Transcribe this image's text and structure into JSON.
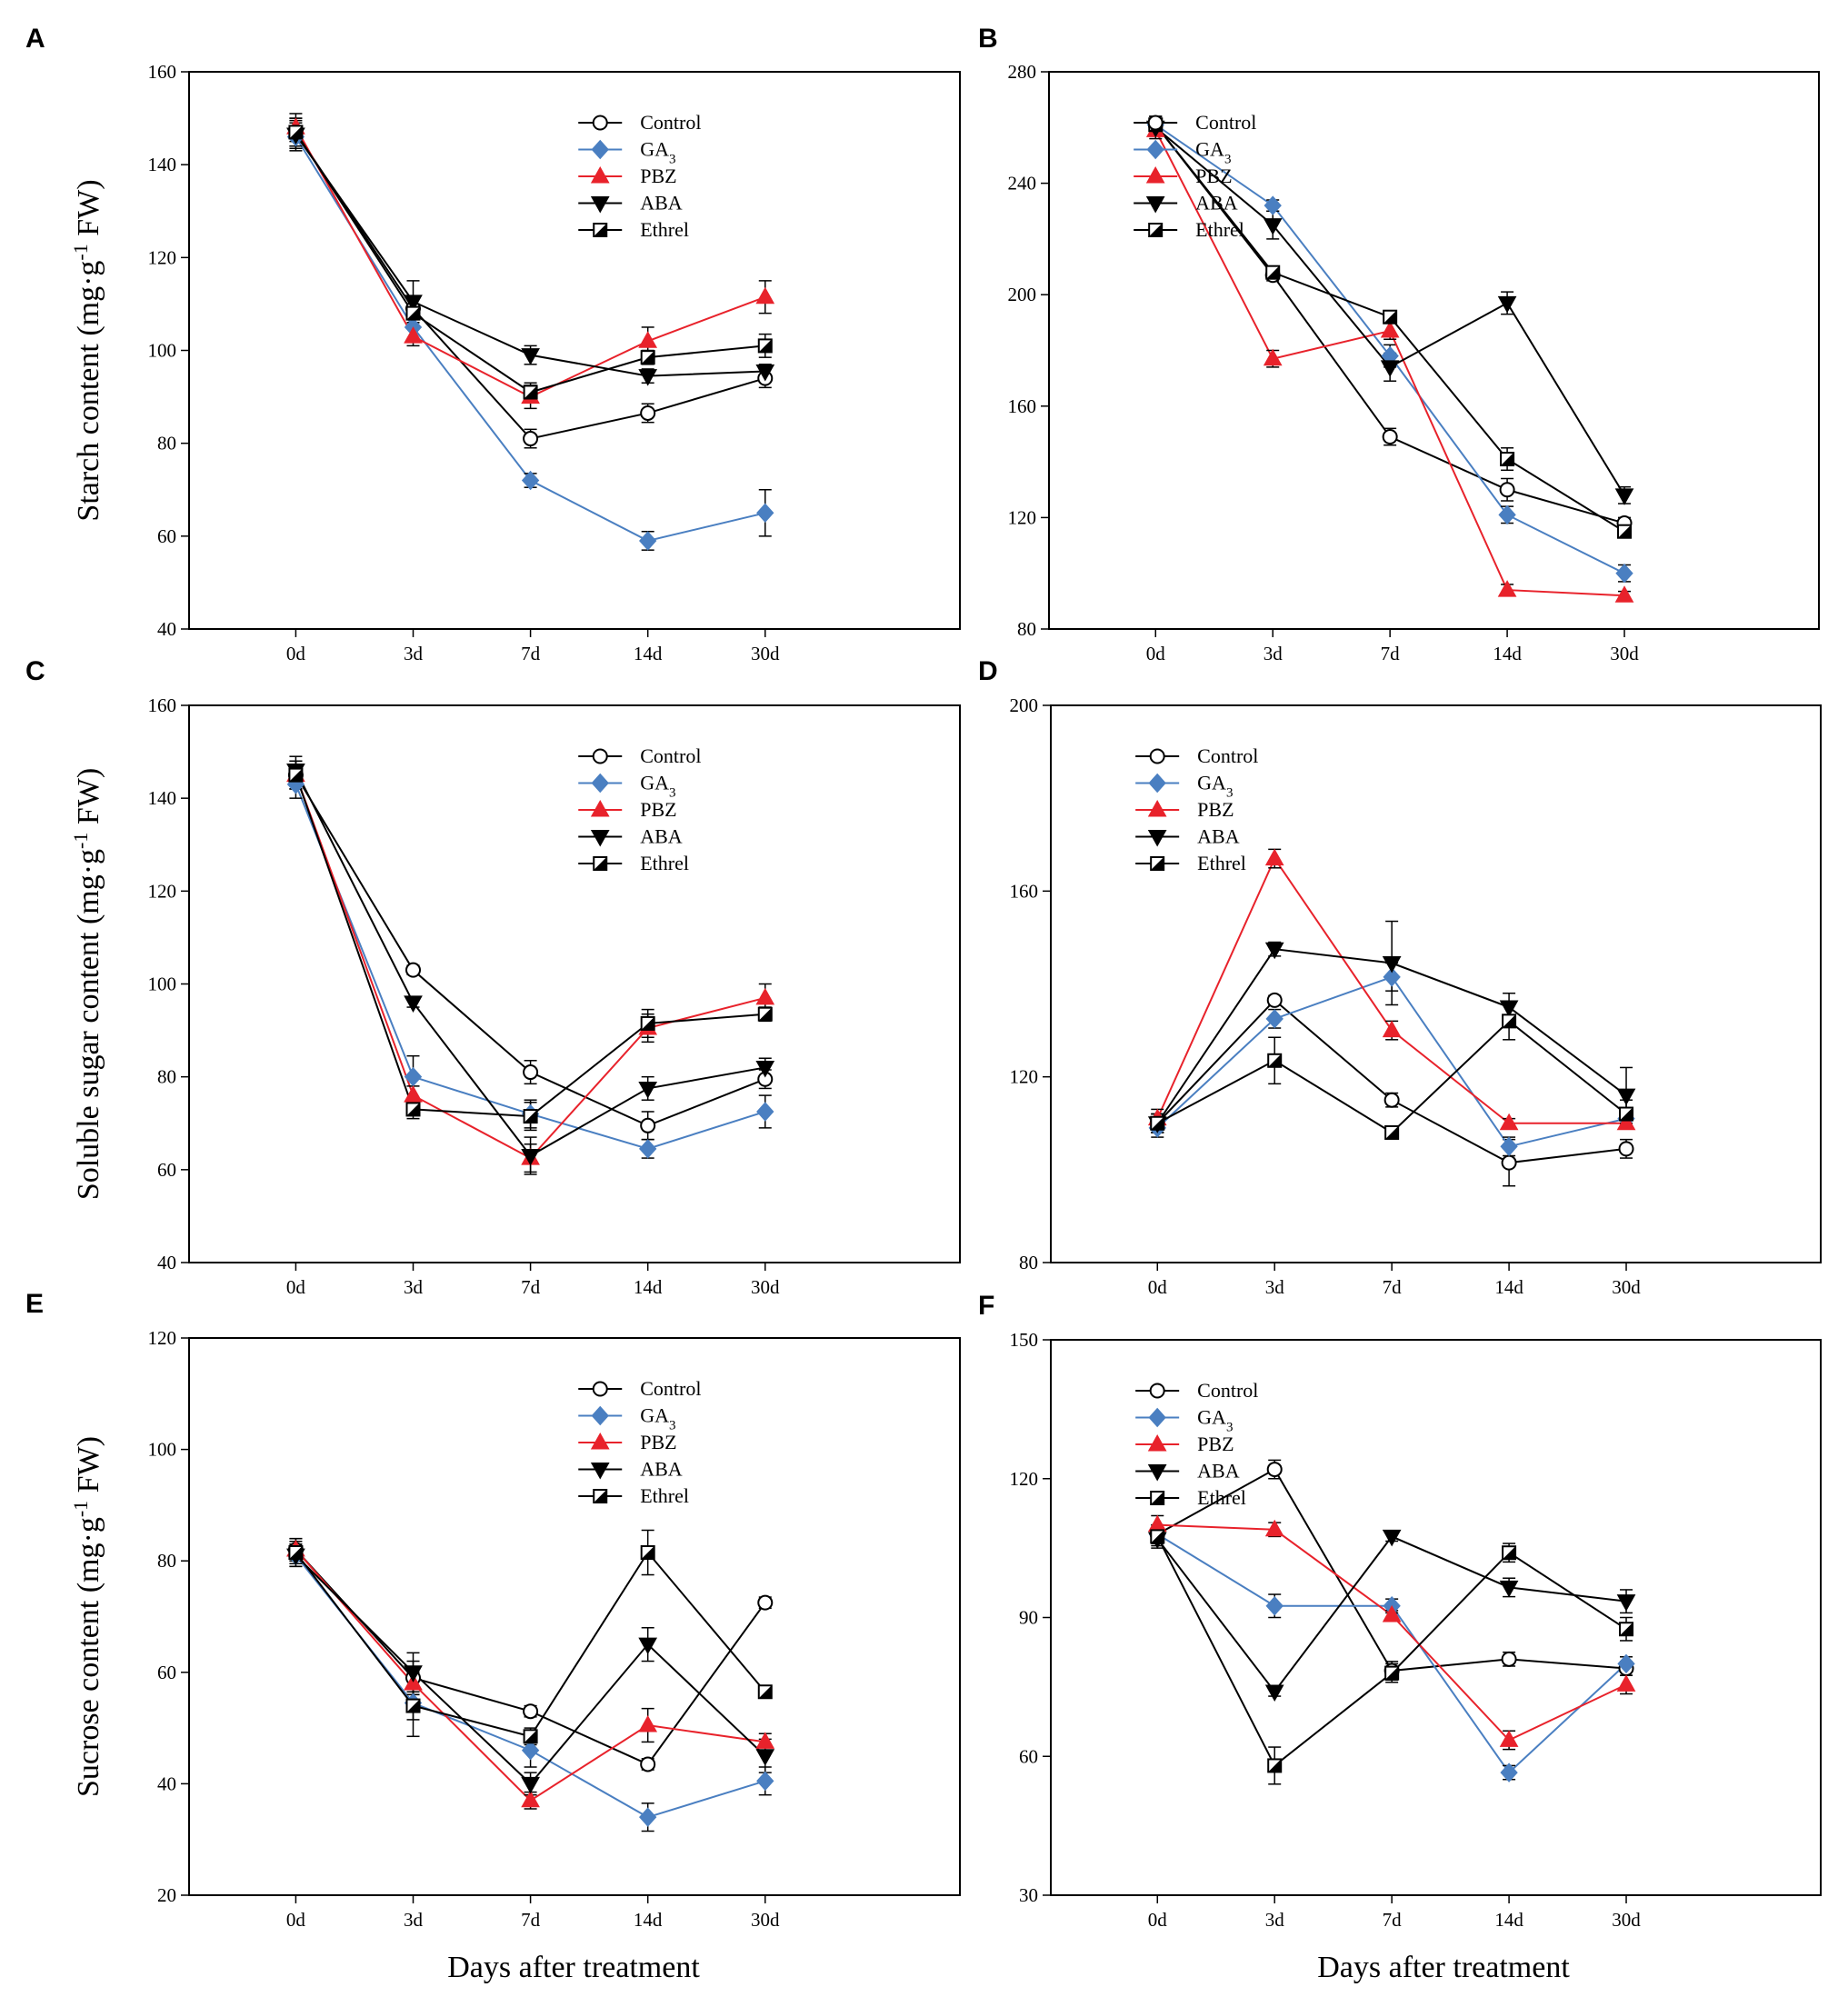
{
  "figure": {
    "xlabel": "Days after treatment"
  },
  "legend": [
    {
      "name": "Control",
      "display": "Control",
      "color": "#000000",
      "marker": "circle-open"
    },
    {
      "name": "GA3",
      "display": "GA",
      "sub": "3",
      "color": "#4a7fc1",
      "marker": "diamond"
    },
    {
      "name": "PBZ",
      "display": "PBZ",
      "color": "#e8222b",
      "marker": "triangle-up"
    },
    {
      "name": "ABA",
      "display": "ABA",
      "color": "#000000",
      "marker": "triangle-down"
    },
    {
      "name": "Ethrel",
      "display": "Ethrel",
      "color": "#000000",
      "marker": "square-half"
    }
  ],
  "chart_data": [
    {
      "panel": "A",
      "type": "line",
      "categories": [
        "0d",
        "3d",
        "7d",
        "14d",
        "30d"
      ],
      "ylabel": "Starch content (mg·g⁻¹ FW)",
      "ylabel_pre": "Starch content (mg·g",
      "ylabel_sup": "-1",
      "ylabel_post": " FW)",
      "ylim": [
        40,
        160
      ],
      "yticks": [
        40,
        60,
        80,
        100,
        120,
        140,
        160
      ],
      "show_xlabel": false,
      "series": [
        {
          "name": "Control",
          "values": [
            147,
            109,
            81,
            86.5,
            94
          ],
          "errors": [
            3,
            2,
            2,
            2,
            2
          ]
        },
        {
          "name": "GA3",
          "values": [
            146,
            105,
            72,
            59,
            65
          ],
          "errors": [
            3,
            3,
            1.5,
            2,
            5
          ]
        },
        {
          "name": "PBZ",
          "values": [
            148,
            103,
            90,
            102,
            111.5
          ],
          "errors": [
            3,
            2,
            2.5,
            3,
            3.5
          ]
        },
        {
          "name": "ABA",
          "values": [
            146.5,
            110.5,
            99,
            94.5,
            95.5
          ],
          "errors": [
            3,
            4.5,
            2,
            1.5,
            1.5
          ]
        },
        {
          "name": "Ethrel",
          "values": [
            147,
            108,
            91,
            98.5,
            101
          ],
          "errors": [
            3,
            2,
            2,
            1.5,
            2.5
          ]
        }
      ]
    },
    {
      "panel": "B",
      "type": "line",
      "categories": [
        "0d",
        "3d",
        "7d",
        "14d",
        "30d"
      ],
      "ylabel": "",
      "ylim": [
        80,
        280
      ],
      "yticks": [
        80,
        120,
        160,
        200,
        240,
        280
      ],
      "show_xlabel": false,
      "series": [
        {
          "name": "Control",
          "values": [
            261,
            207,
            149,
            130,
            118
          ],
          "errors": [
            3,
            2,
            3,
            4,
            2
          ]
        },
        {
          "name": "GA3",
          "values": [
            261,
            232,
            178,
            121,
            100
          ],
          "errors": [
            3,
            2,
            4,
            3,
            3
          ]
        },
        {
          "name": "PBZ",
          "values": [
            259,
            177,
            187,
            94,
            92
          ],
          "errors": [
            3,
            3,
            3,
            2,
            1.5
          ]
        },
        {
          "name": "ABA",
          "values": [
            260,
            225,
            174,
            197,
            128
          ],
          "errors": [
            3,
            5,
            5,
            4,
            3
          ]
        },
        {
          "name": "Ethrel",
          "values": [
            261,
            208,
            192,
            141,
            115
          ],
          "errors": [
            3,
            2,
            2,
            4,
            2
          ]
        }
      ]
    },
    {
      "panel": "C",
      "type": "line",
      "categories": [
        "0d",
        "3d",
        "7d",
        "14d",
        "30d"
      ],
      "ylabel": "Soluble sugar content (mg·g⁻¹ FW)",
      "ylabel_pre": "Soluble sugar content (mg·g",
      "ylabel_sup": "-1",
      "ylabel_post": " FW)",
      "ylim": [
        40,
        160
      ],
      "yticks": [
        40,
        60,
        80,
        100,
        120,
        140,
        160
      ],
      "show_xlabel": false,
      "series": [
        {
          "name": "Control",
          "values": [
            145,
            103,
            81,
            69.5,
            79.5
          ],
          "errors": [
            3,
            1,
            2.5,
            3,
            2
          ]
        },
        {
          "name": "GA3",
          "values": [
            143,
            80,
            72,
            64.5,
            72.5
          ],
          "errors": [
            3,
            4.5,
            3,
            2,
            3.5
          ]
        },
        {
          "name": "PBZ",
          "values": [
            145,
            76,
            62.5,
            90.5,
            97
          ],
          "errors": [
            3,
            2,
            3,
            3,
            3
          ]
        },
        {
          "name": "ABA",
          "values": [
            146,
            96,
            63,
            77.5,
            82
          ],
          "errors": [
            3,
            1,
            4,
            2.5,
            2
          ]
        },
        {
          "name": "Ethrel",
          "values": [
            145,
            73,
            71.5,
            91.5,
            93.5
          ],
          "errors": [
            3,
            2,
            3,
            3,
            1.5
          ]
        }
      ]
    },
    {
      "panel": "D",
      "type": "line",
      "categories": [
        "0d",
        "3d",
        "7d",
        "14d",
        "30d"
      ],
      "ylabel": "",
      "ylim": [
        80,
        200
      ],
      "yticks": [
        80,
        120,
        160,
        200
      ],
      "show_xlabel": false,
      "series": [
        {
          "name": "Control",
          "values": [
            110,
            136.5,
            115,
            101.5,
            104.5
          ],
          "errors": [
            2,
            1,
            1.5,
            5,
            2
          ]
        },
        {
          "name": "GA3",
          "values": [
            109,
            132.5,
            141.5,
            105,
            111
          ],
          "errors": [
            2,
            2,
            3,
            2,
            2
          ]
        },
        {
          "name": "PBZ",
          "values": [
            111,
            167,
            130,
            110,
            110
          ],
          "errors": [
            2,
            2,
            2,
            1,
            1
          ]
        },
        {
          "name": "ABA",
          "values": [
            110,
            147.5,
            144.5,
            135,
            116
          ],
          "errors": [
            2,
            1.5,
            9,
            3,
            6
          ]
        },
        {
          "name": "Ethrel",
          "values": [
            110,
            123.5,
            108,
            132,
            112
          ],
          "errors": [
            2,
            5,
            1,
            4,
            3
          ]
        }
      ]
    },
    {
      "panel": "E",
      "type": "line",
      "categories": [
        "0d",
        "3d",
        "7d",
        "14d",
        "30d"
      ],
      "ylabel": "Sucrose content (mg·g⁻¹ FW)",
      "ylabel_pre": "Sucrose content (mg·g",
      "ylabel_sup": "-1",
      "ylabel_post": " FW)",
      "ylim": [
        20,
        120
      ],
      "yticks": [
        20,
        40,
        60,
        80,
        100,
        120
      ],
      "show_xlabel": true,
      "series": [
        {
          "name": "Control",
          "values": [
            82,
            59,
            53,
            43.5,
            72.5
          ],
          "errors": [
            2,
            3,
            1,
            1,
            1
          ]
        },
        {
          "name": "GA3",
          "values": [
            81,
            54.5,
            46,
            34,
            40.5
          ],
          "errors": [
            2,
            3,
            3,
            2.5,
            2.5
          ]
        },
        {
          "name": "PBZ",
          "values": [
            82,
            58,
            37,
            50.5,
            47.5
          ],
          "errors": [
            2,
            2,
            1.5,
            3,
            1.5
          ]
        },
        {
          "name": "ABA",
          "values": [
            81,
            60,
            40,
            65,
            45
          ],
          "errors": [
            2,
            3.5,
            2,
            3,
            3
          ]
        },
        {
          "name": "Ethrel",
          "values": [
            81.5,
            54,
            48.5,
            81.5,
            56.5
          ],
          "errors": [
            2,
            5.5,
            1.5,
            4,
            1
          ]
        }
      ]
    },
    {
      "panel": "F",
      "type": "line",
      "categories": [
        "0d",
        "3d",
        "7d",
        "14d",
        "30d"
      ],
      "ylabel": "",
      "ylim": [
        30,
        150
      ],
      "yticks": [
        30,
        60,
        90,
        120,
        150
      ],
      "show_xlabel": true,
      "series": [
        {
          "name": "Control",
          "values": [
            108,
            122,
            78.5,
            81,
            79
          ],
          "errors": [
            2,
            2,
            2,
            1.5,
            1.5
          ]
        },
        {
          "name": "GA3",
          "values": [
            108,
            92.5,
            92.5,
            56.5,
            80
          ],
          "errors": [
            2,
            2.5,
            1.5,
            1.5,
            1.5
          ]
        },
        {
          "name": "PBZ",
          "values": [
            110,
            109,
            90.5,
            63.5,
            75.5
          ],
          "errors": [
            2,
            1.5,
            1,
            2,
            2
          ]
        },
        {
          "name": "ABA",
          "values": [
            107,
            74,
            107.5,
            96.5,
            93.5
          ],
          "errors": [
            2,
            1,
            1,
            2,
            2.5
          ]
        },
        {
          "name": "Ethrel",
          "values": [
            107.5,
            58,
            78,
            104,
            87.5
          ],
          "errors": [
            2,
            4,
            2,
            2,
            2.5
          ]
        }
      ]
    }
  ]
}
